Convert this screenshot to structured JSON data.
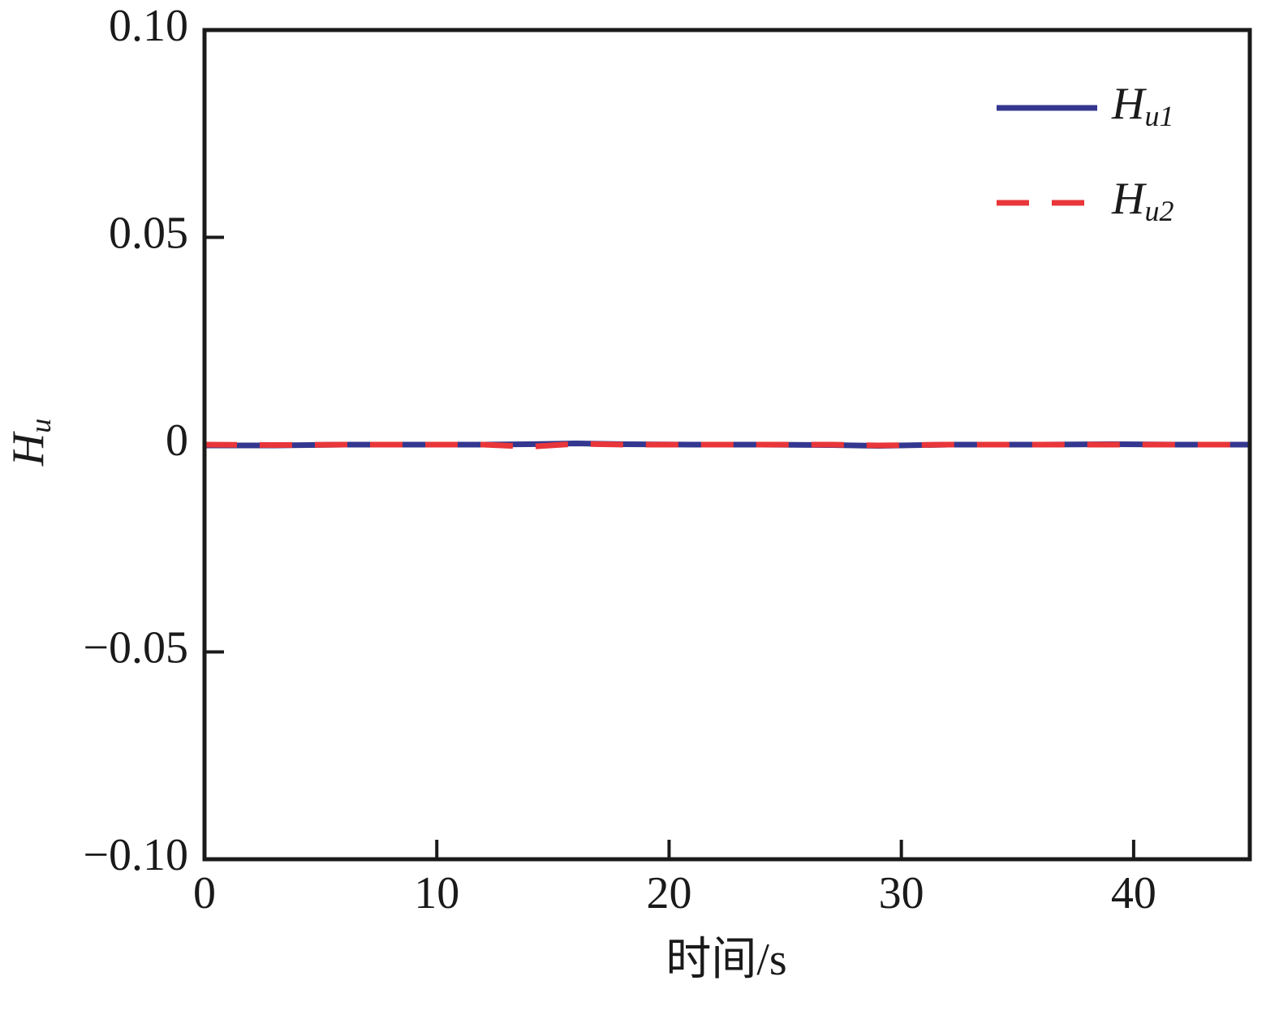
{
  "chart_data": {
    "type": "line",
    "x_label": "时间/s",
    "y_label": "Hu",
    "xlim": [
      0,
      45
    ],
    "xticks": [
      0,
      10,
      20,
      30,
      40
    ],
    "ylim": [
      -0.1,
      0.1
    ],
    "yticks": [
      {
        "value": -0.1,
        "label": "−0.10"
      },
      {
        "value": -0.05,
        "label": "−0.05"
      },
      0,
      {
        "value": 0.05,
        "label": "0.05"
      },
      {
        "value": 0.1,
        "label": "0.10"
      }
    ],
    "x": [
      0,
      3,
      6,
      9,
      12,
      14,
      16,
      18,
      21,
      24,
      27,
      29,
      32,
      36,
      39,
      42,
      45
    ],
    "series": [
      {
        "name": "Hu1",
        "color": "#33378f",
        "dashed": false,
        "values": [
          -0.0002,
          -0.0002,
          0,
          0,
          0,
          0.0001,
          0.0003,
          0.0001,
          0,
          0,
          -0.0001,
          -0.0003,
          0,
          0,
          0.0001,
          0,
          0
        ]
      },
      {
        "name": "Hu2",
        "color": "#e8363a",
        "dashed": true,
        "values": [
          0,
          -0.0001,
          0,
          0,
          0,
          -0.0005,
          0.0002,
          0,
          0,
          0,
          0,
          -0.0002,
          0,
          0,
          0,
          0,
          0
        ]
      }
    ],
    "legend": "upper right"
  }
}
